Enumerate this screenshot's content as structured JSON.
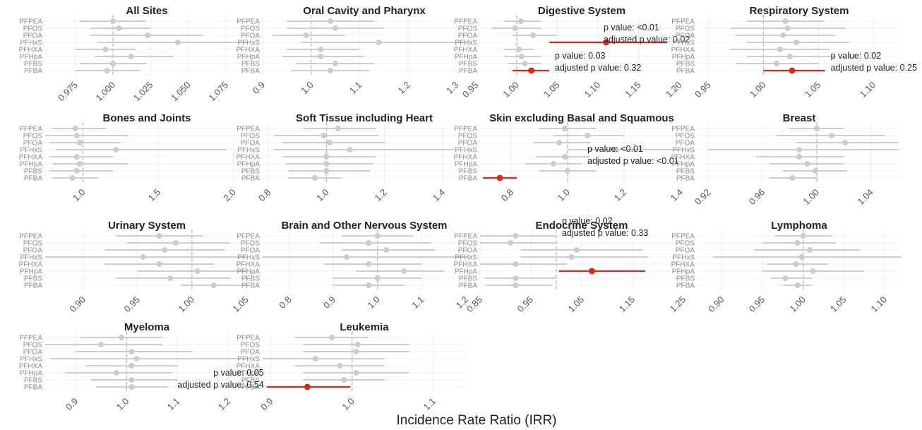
{
  "figure": {
    "xlabel": "Incidence Rate Ratio (IRR)",
    "colors": {
      "significant": "#d7291f",
      "nonsignificant": "#cccccc",
      "grid": "#ececec",
      "reference": "#b5b5b5"
    }
  },
  "chart_data": [
    {
      "type": "forest",
      "title": "All Sites",
      "xlim": [
        0.955,
        1.09
      ],
      "xticks": [
        {
          "v": 0.975,
          "label": "0.975"
        },
        {
          "v": 1.0,
          "label": "1.000"
        },
        {
          "v": 1.025,
          "label": "1.025"
        },
        {
          "v": 1.05,
          "label": "1.050"
        },
        {
          "v": 1.075,
          "label": "1.075"
        }
      ],
      "categories": [
        "PFPEA",
        "PFOS",
        "PFOA",
        "PFHxS",
        "PFHXA",
        "PFHpA",
        "PFBS",
        "PFBA"
      ],
      "estimates": [
        1.0,
        1.004,
        1.023,
        1.043,
        0.995,
        1.012,
        1.0,
        0.996
      ],
      "lower": [
        0.978,
        0.985,
        0.985,
        0.99,
        0.975,
        0.988,
        0.978,
        0.975
      ],
      "upper": [
        1.022,
        1.025,
        1.06,
        1.09,
        1.015,
        1.04,
        1.022,
        1.018
      ],
      "significant": [
        false,
        false,
        false,
        false,
        false,
        false,
        false,
        false
      ],
      "annotations": []
    },
    {
      "type": "forest",
      "title": "Oral Cavity and Pharynx",
      "xlim": [
        0.9,
        1.32
      ],
      "xticks": [
        {
          "v": 0.9,
          "label": "0.9"
        },
        {
          "v": 1.0,
          "label": "1.0"
        },
        {
          "v": 1.1,
          "label": "1.1"
        },
        {
          "v": 1.2,
          "label": "1.2"
        },
        {
          "v": 1.3,
          "label": "1.3"
        }
      ],
      "categories": [
        "PFPEA",
        "PFOS",
        "PFOA",
        "PFHxS",
        "PFHXA",
        "PFHpA",
        "PFBS",
        "PFBA"
      ],
      "estimates": [
        1.04,
        1.05,
        0.99,
        1.14,
        1.02,
        1.02,
        1.05,
        1.04
      ],
      "lower": [
        0.95,
        0.95,
        0.92,
        0.98,
        0.95,
        0.94,
        0.97,
        0.96
      ],
      "upper": [
        1.13,
        1.15,
        1.07,
        1.32,
        1.1,
        1.11,
        1.13,
        1.12
      ],
      "significant": [
        false,
        false,
        false,
        false,
        false,
        false,
        false,
        false
      ],
      "annotations": []
    },
    {
      "type": "forest",
      "title": "Digestive System",
      "xlim": [
        0.955,
        1.205
      ],
      "xticks": [
        {
          "v": 0.95,
          "label": "0.95"
        },
        {
          "v": 1.0,
          "label": "1.00"
        },
        {
          "v": 1.05,
          "label": "1.05"
        },
        {
          "v": 1.1,
          "label": "1.10"
        },
        {
          "v": 1.15,
          "label": "1.15"
        },
        {
          "v": 1.2,
          "label": "1.20"
        }
      ],
      "categories": [
        "PFPEA",
        "PFOS",
        "PFOA",
        "PFHxS",
        "PFHXA",
        "PFHpA",
        "PFBS",
        "PFBA"
      ],
      "estimates": [
        1.005,
        0.998,
        1.02,
        1.11,
        1.003,
        1.006,
        1.01,
        1.018
      ],
      "lower": [
        0.985,
        0.97,
        0.995,
        1.04,
        0.985,
        0.985,
        0.99,
        0.995
      ],
      "upper": [
        1.03,
        1.03,
        1.05,
        1.185,
        1.02,
        1.03,
        1.03,
        1.04
      ],
      "significant": [
        false,
        false,
        false,
        true,
        false,
        false,
        false,
        true
      ],
      "annotations": [
        {
          "row": 3,
          "side": "above",
          "lines": [
            "p value: <0.01",
            "adjusted p value: 0.02"
          ]
        },
        {
          "row": 7,
          "side": "above",
          "lines": [
            "p value: 0.03",
            "adjusted p value: 0.32"
          ]
        }
      ]
    },
    {
      "type": "forest",
      "title": "Respiratory System",
      "xlim": [
        0.94,
        1.125
      ],
      "xticks": [
        {
          "v": 0.95,
          "label": "0.95"
        },
        {
          "v": 1.0,
          "label": "1.00"
        },
        {
          "v": 1.05,
          "label": "1.05"
        },
        {
          "v": 1.1,
          "label": "1.10"
        }
      ],
      "categories": [
        "PFPEA",
        "PFOS",
        "PFOA",
        "PFHxS",
        "PFHXA",
        "PFHpA",
        "PFBS",
        "PFBA"
      ],
      "estimates": [
        1.02,
        1.022,
        1.018,
        1.03,
        1.015,
        1.024,
        1.012,
        1.026
      ],
      "lower": [
        0.985,
        0.97,
        0.975,
        0.985,
        0.97,
        0.985,
        0.975,
        1.0
      ],
      "upper": [
        1.055,
        1.075,
        1.065,
        1.078,
        1.06,
        1.065,
        1.05,
        1.056
      ],
      "significant": [
        false,
        false,
        false,
        false,
        false,
        false,
        false,
        true
      ],
      "annotations": [
        {
          "row": 7,
          "side": "above",
          "lines": [
            "p value: 0.02",
            "adjusted p value: 0.25"
          ]
        }
      ]
    },
    {
      "type": "forest",
      "title": "Bones and Joints",
      "xlim": [
        0.75,
        2.1
      ],
      "xticks": [
        {
          "v": 1.0,
          "label": "1.0"
        },
        {
          "v": 1.5,
          "label": "1.5"
        },
        {
          "v": 2.0,
          "label": "2.0"
        }
      ],
      "categories": [
        "PFPEA",
        "PFOS",
        "PFOA",
        "PFHxS",
        "PFHXA",
        "PFHpA",
        "PFBS",
        "PFBA"
      ],
      "estimates": [
        0.95,
        0.96,
        0.98,
        1.22,
        0.96,
        0.98,
        0.96,
        0.93
      ],
      "lower": [
        0.8,
        0.75,
        0.78,
        0.82,
        0.78,
        0.8,
        0.78,
        0.8
      ],
      "upper": [
        1.15,
        1.3,
        1.25,
        1.95,
        1.2,
        1.3,
        1.2,
        1.1
      ],
      "significant": [
        false,
        false,
        false,
        false,
        false,
        false,
        false,
        false
      ],
      "annotations": []
    },
    {
      "type": "forest",
      "title": "Soft Tissue including Heart",
      "xlim": [
        0.78,
        1.48
      ],
      "xticks": [
        {
          "v": 0.8,
          "label": "0.8"
        },
        {
          "v": 1.0,
          "label": "1.0"
        },
        {
          "v": 1.2,
          "label": "1.2"
        },
        {
          "v": 1.4,
          "label": "1.4"
        }
      ],
      "categories": [
        "PFPEA",
        "PFOS",
        "PFOA",
        "PFHxS",
        "PFHXA",
        "PFHpA",
        "PFBS",
        "PFBA"
      ],
      "estimates": [
        1.04,
        0.99,
        1.01,
        1.08,
        1.0,
        1.0,
        1.0,
        0.96
      ],
      "lower": [
        0.92,
        0.82,
        0.85,
        0.82,
        0.85,
        0.86,
        0.87,
        0.87
      ],
      "upper": [
        1.17,
        1.18,
        1.2,
        1.44,
        1.17,
        1.16,
        1.15,
        1.05
      ],
      "significant": [
        false,
        false,
        false,
        false,
        false,
        false,
        false,
        false
      ],
      "annotations": []
    },
    {
      "type": "forest",
      "title": "Skin excluding Basal and Squamous",
      "xlim": [
        0.69,
        1.41
      ],
      "xticks": [
        {
          "v": 0.8,
          "label": "0.8"
        },
        {
          "v": 1.0,
          "label": "1.0"
        },
        {
          "v": 1.2,
          "label": "1.2"
        },
        {
          "v": 1.4,
          "label": "1.4"
        }
      ],
      "categories": [
        "PFPEA",
        "PFOS",
        "PFOA",
        "PFHxS",
        "PFHXA",
        "PFHpA",
        "PFBS",
        "PFBA"
      ],
      "estimates": [
        0.99,
        1.07,
        0.97,
        1.17,
        0.99,
        0.95,
        1.0,
        0.76
      ],
      "lower": [
        0.9,
        0.95,
        0.88,
        1.0,
        0.89,
        0.85,
        0.9,
        0.7
      ],
      "upper": [
        1.1,
        1.2,
        1.08,
        1.4,
        1.08,
        1.05,
        1.1,
        0.82
      ],
      "significant": [
        false,
        false,
        false,
        false,
        false,
        false,
        false,
        true
      ],
      "annotations": [
        {
          "row": 5,
          "side": "above",
          "lines": [
            "p value: <0.01",
            "adjusted p value: <0.01"
          ]
        }
      ]
    },
    {
      "type": "forest",
      "title": "Breast",
      "xlim": [
        0.912,
        1.062
      ],
      "xticks": [
        {
          "v": 0.92,
          "label": "0.92"
        },
        {
          "v": 0.96,
          "label": "0.96"
        },
        {
          "v": 1.0,
          "label": "1.00"
        },
        {
          "v": 1.04,
          "label": "1.04"
        }
      ],
      "categories": [
        "PFPEA",
        "PFOS",
        "PFOA",
        "PFHxS",
        "PFHXA",
        "PFHpA",
        "PFBS",
        "PFBA"
      ],
      "estimates": [
        1.0,
        1.011,
        1.021,
        0.987,
        0.987,
        0.993,
        0.999,
        0.982
      ],
      "lower": [
        0.98,
        0.97,
        0.985,
        0.92,
        0.955,
        0.965,
        0.975,
        0.965
      ],
      "upper": [
        1.02,
        1.05,
        1.06,
        1.06,
        1.02,
        1.02,
        1.022,
        1.0
      ],
      "significant": [
        false,
        false,
        false,
        false,
        false,
        false,
        false,
        false
      ],
      "annotations": []
    },
    {
      "type": "forest",
      "title": "Urinary System",
      "xlim": [
        0.865,
        1.052
      ],
      "xticks": [
        {
          "v": 0.9,
          "label": "0.90"
        },
        {
          "v": 0.95,
          "label": "0.95"
        },
        {
          "v": 1.0,
          "label": "1.00"
        },
        {
          "v": 1.05,
          "label": "1.05"
        }
      ],
      "categories": [
        "PFPEA",
        "PFOS",
        "PFOA",
        "PFHxS",
        "PFHXA",
        "PFHpA",
        "PFBS",
        "PFBA"
      ],
      "estimates": [
        0.97,
        0.985,
        0.975,
        0.955,
        0.97,
        1.005,
        0.98,
        1.02
      ],
      "lower": [
        0.93,
        0.94,
        0.92,
        0.865,
        0.92,
        0.95,
        0.93,
        0.99
      ],
      "upper": [
        1.01,
        1.035,
        1.03,
        1.05,
        1.02,
        1.05,
        1.035,
        1.05
      ],
      "significant": [
        false,
        false,
        false,
        false,
        false,
        false,
        false,
        false
      ],
      "annotations": []
    },
    {
      "type": "forest",
      "title": "Brain and Other Nervous System",
      "xlim": [
        0.74,
        1.2
      ],
      "xticks": [
        {
          "v": 0.8,
          "label": "0.8"
        },
        {
          "v": 0.9,
          "label": "0.9"
        },
        {
          "v": 1.0,
          "label": "1.0"
        },
        {
          "v": 1.1,
          "label": "1.1"
        },
        {
          "v": 1.2,
          "label": "1.2"
        }
      ],
      "categories": [
        "PFPEA",
        "PFOS",
        "PFOA",
        "PFHxS",
        "PFHXA",
        "PFHpA",
        "PFBS",
        "PFBA"
      ],
      "estimates": [
        1.0,
        0.98,
        1.02,
        0.93,
        0.98,
        1.06,
        1.0,
        0.98
      ],
      "lower": [
        0.92,
        0.87,
        0.92,
        0.74,
        0.88,
        0.95,
        0.9,
        0.9
      ],
      "upper": [
        1.08,
        1.12,
        1.13,
        1.2,
        1.1,
        1.15,
        1.1,
        1.06
      ],
      "significant": [
        false,
        false,
        false,
        false,
        false,
        false,
        false,
        false
      ],
      "annotations": []
    },
    {
      "type": "forest",
      "title": "Endocrine System",
      "xlim": [
        0.85,
        1.25
      ],
      "xticks": [
        {
          "v": 0.85,
          "label": "0.85"
        },
        {
          "v": 0.95,
          "label": "0.95"
        },
        {
          "v": 1.05,
          "label": "1.05"
        },
        {
          "v": 1.15,
          "label": "1.15"
        },
        {
          "v": 1.25,
          "label": "1.25"
        }
      ],
      "categories": [
        "PFPEA",
        "PFOS",
        "PFOA",
        "PFHxS",
        "PFHXA",
        "PFHpA",
        "PFBS",
        "PFBA"
      ],
      "estimates": [
        0.92,
        0.91,
        1.04,
        1.03,
        0.92,
        1.07,
        0.92,
        0.92
      ],
      "lower": [
        0.85,
        0.85,
        0.93,
        0.93,
        0.85,
        1.005,
        0.86,
        0.86
      ],
      "upper": [
        1.0,
        1.0,
        1.17,
        1.18,
        1.02,
        1.175,
        1.0,
        0.99
      ],
      "significant": [
        false,
        false,
        false,
        false,
        false,
        true,
        false,
        false
      ],
      "annotations": [
        {
          "row": 0,
          "side": "above",
          "lines": [
            "p value: 0.02",
            "adjusted p value: 0.33"
          ]
        }
      ]
    },
    {
      "type": "forest",
      "title": "Lymphoma",
      "xlim": [
        0.87,
        1.12
      ],
      "xticks": [
        {
          "v": 0.9,
          "label": "0.90"
        },
        {
          "v": 0.95,
          "label": "0.95"
        },
        {
          "v": 1.0,
          "label": "1.00"
        },
        {
          "v": 1.05,
          "label": "1.05"
        },
        {
          "v": 1.1,
          "label": "1.10"
        }
      ],
      "categories": [
        "PFPEA",
        "PFOS",
        "PFOA",
        "PFHxS",
        "PFHXA",
        "PFHpA",
        "PFBS",
        "PFBA"
      ],
      "estimates": [
        1.0,
        0.993,
        1.008,
        0.998,
        0.991,
        1.012,
        0.978,
        0.993
      ],
      "lower": [
        0.965,
        0.95,
        0.94,
        0.89,
        0.955,
        0.95,
        0.96,
        0.975
      ],
      "upper": [
        1.035,
        1.04,
        1.07,
        1.12,
        1.03,
        1.075,
        1.01,
        1.01
      ],
      "significant": [
        false,
        false,
        false,
        false,
        false,
        false,
        false,
        false
      ],
      "annotations": []
    },
    {
      "type": "forest",
      "title": "Myeloma",
      "xlim": [
        0.84,
        1.24
      ],
      "xticks": [
        {
          "v": 0.9,
          "label": "0.9"
        },
        {
          "v": 1.0,
          "label": "1.0"
        },
        {
          "v": 1.1,
          "label": "1.1"
        },
        {
          "v": 1.2,
          "label": "1.2"
        }
      ],
      "categories": [
        "PFPEA",
        "PFOS",
        "PFOA",
        "PFHxS",
        "PFHXA",
        "PFHpA",
        "PFBS",
        "PFBA"
      ],
      "estimates": [
        0.99,
        0.95,
        1.01,
        1.02,
        1.01,
        0.98,
        1.01,
        1.01
      ],
      "lower": [
        0.91,
        0.84,
        0.9,
        0.85,
        0.92,
        0.88,
        0.93,
        0.94
      ],
      "upper": [
        1.07,
        1.07,
        1.13,
        1.24,
        1.1,
        1.09,
        1.1,
        1.08
      ],
      "significant": [
        false,
        false,
        false,
        false,
        false,
        false,
        false,
        false
      ],
      "annotations": []
    },
    {
      "type": "forest",
      "title": "Leukemia",
      "xlim": [
        0.89,
        1.14
      ],
      "xticks": [
        {
          "v": 0.9,
          "label": "0.9"
        },
        {
          "v": 1.0,
          "label": "1.0"
        },
        {
          "v": 1.1,
          "label": "1.1"
        }
      ],
      "categories": [
        "PFPEA",
        "PFOS",
        "PFOA",
        "PFHxS",
        "PFHXA",
        "PFHpA",
        "PFBS",
        "PFBA"
      ],
      "estimates": [
        0.975,
        1.007,
        1.005,
        0.955,
        0.985,
        1.005,
        0.99,
        0.945
      ],
      "lower": [
        0.93,
        0.94,
        0.94,
        0.89,
        0.93,
        0.94,
        0.94,
        0.895
      ],
      "upper": [
        1.02,
        1.07,
        1.07,
        1.04,
        1.04,
        1.07,
        1.04,
        0.998
      ],
      "significant": [
        false,
        false,
        false,
        false,
        false,
        false,
        false,
        true
      ],
      "annotations": [
        {
          "row": 7,
          "side": "left",
          "lines": [
            "p value: 0.05",
            "adjusted p value: 0.54"
          ]
        }
      ]
    }
  ]
}
